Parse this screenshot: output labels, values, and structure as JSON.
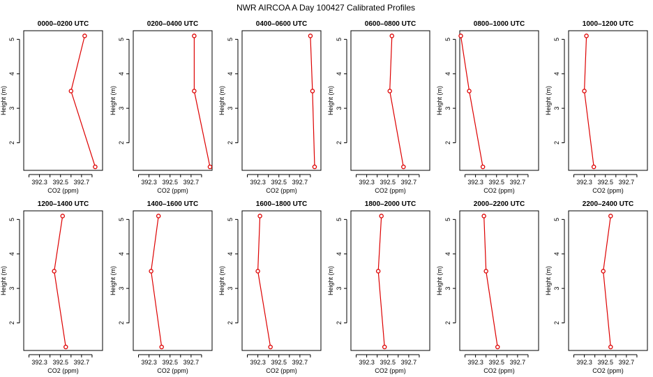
{
  "figure": {
    "title": "NWR AIRCOA A  Day 100427  Calibrated Profiles"
  },
  "colors": {
    "series": "#dd0000",
    "axis": "#000000",
    "background": "#ffffff"
  },
  "chart_data": [
    {
      "type": "line",
      "title": "0000–0200 UTC",
      "xlabel": "CO2 (ppm)",
      "ylabel": "Height (m)",
      "xlim": [
        392.15,
        392.9
      ],
      "ylim": [
        1.2,
        5.25
      ],
      "xticks": [
        "392.3",
        "392.5",
        "392.7"
      ],
      "yticks": [
        "2",
        "3",
        "4",
        "5"
      ],
      "grid": false,
      "x": [
        392.83,
        392.6,
        392.73
      ],
      "y": [
        1.3,
        3.5,
        5.1
      ]
    },
    {
      "type": "line",
      "title": "0200–0400 UTC",
      "xlabel": "CO2 (ppm)",
      "ylabel": "Height (m)",
      "xlim": [
        392.15,
        392.9
      ],
      "ylim": [
        1.2,
        5.25
      ],
      "xticks": [
        "392.3",
        "392.5",
        "392.7"
      ],
      "yticks": [
        "2",
        "3",
        "4",
        "5"
      ],
      "grid": false,
      "x": [
        392.88,
        392.73,
        392.73
      ],
      "y": [
        1.3,
        3.5,
        5.1
      ]
    },
    {
      "type": "line",
      "title": "0400–0600 UTC",
      "xlabel": "CO2 (ppm)",
      "ylabel": "Height (m)",
      "xlim": [
        392.15,
        392.9
      ],
      "ylim": [
        1.2,
        5.25
      ],
      "xticks": [
        "392.3",
        "392.5",
        "392.7"
      ],
      "yticks": [
        "2",
        "3",
        "4",
        "5"
      ],
      "grid": false,
      "x": [
        392.84,
        392.82,
        392.8
      ],
      "y": [
        1.3,
        3.5,
        5.1
      ]
    },
    {
      "type": "line",
      "title": "0600–0800 UTC",
      "xlabel": "CO2 (ppm)",
      "ylabel": "Height (m)",
      "xlim": [
        392.15,
        392.9
      ],
      "ylim": [
        1.2,
        5.25
      ],
      "xticks": [
        "392.3",
        "392.5",
        "392.7"
      ],
      "yticks": [
        "2",
        "3",
        "4",
        "5"
      ],
      "grid": false,
      "x": [
        392.65,
        392.52,
        392.54
      ],
      "y": [
        1.3,
        3.5,
        5.1
      ]
    },
    {
      "type": "line",
      "title": "0800–1000 UTC",
      "xlabel": "CO2 (ppm)",
      "ylabel": "Height (m)",
      "xlim": [
        392.15,
        392.9
      ],
      "ylim": [
        1.2,
        5.25
      ],
      "xticks": [
        "392.3",
        "392.5",
        "392.7"
      ],
      "yticks": [
        "2",
        "3",
        "4",
        "5"
      ],
      "grid": false,
      "x": [
        392.37,
        392.24,
        392.16
      ],
      "y": [
        1.3,
        3.5,
        5.1
      ]
    },
    {
      "type": "line",
      "title": "1000–1200 UTC",
      "xlabel": "CO2 (ppm)",
      "ylabel": "Height (m)",
      "xlim": [
        392.15,
        392.9
      ],
      "ylim": [
        1.2,
        5.25
      ],
      "xticks": [
        "392.3",
        "392.5",
        "392.7"
      ],
      "yticks": [
        "2",
        "3",
        "4",
        "5"
      ],
      "grid": false,
      "x": [
        392.39,
        392.3,
        392.32
      ],
      "y": [
        1.3,
        3.5,
        5.1
      ]
    },
    {
      "type": "line",
      "title": "1200–1400 UTC",
      "xlabel": "CO2 (ppm)",
      "ylabel": "Height (m)",
      "xlim": [
        392.15,
        392.9
      ],
      "ylim": [
        1.2,
        5.25
      ],
      "xticks": [
        "392.3",
        "392.5",
        "392.7"
      ],
      "yticks": [
        "2",
        "3",
        "4",
        "5"
      ],
      "grid": false,
      "x": [
        392.55,
        392.44,
        392.52
      ],
      "y": [
        1.3,
        3.5,
        5.1
      ]
    },
    {
      "type": "line",
      "title": "1400–1600 UTC",
      "xlabel": "CO2 (ppm)",
      "ylabel": "Height (m)",
      "xlim": [
        392.15,
        392.9
      ],
      "ylim": [
        1.2,
        5.25
      ],
      "xticks": [
        "392.3",
        "392.5",
        "392.7"
      ],
      "yticks": [
        "2",
        "3",
        "4",
        "5"
      ],
      "grid": false,
      "x": [
        392.42,
        392.32,
        392.39
      ],
      "y": [
        1.3,
        3.5,
        5.1
      ]
    },
    {
      "type": "line",
      "title": "1600–1800 UTC",
      "xlabel": "CO2 (ppm)",
      "ylabel": "Height (m)",
      "xlim": [
        392.15,
        392.9
      ],
      "ylim": [
        1.2,
        5.25
      ],
      "xticks": [
        "392.3",
        "392.5",
        "392.7"
      ],
      "yticks": [
        "2",
        "3",
        "4",
        "5"
      ],
      "grid": false,
      "x": [
        392.42,
        392.3,
        392.32
      ],
      "y": [
        1.3,
        3.5,
        5.1
      ]
    },
    {
      "type": "line",
      "title": "1800–2000 UTC",
      "xlabel": "CO2 (ppm)",
      "ylabel": "Height (m)",
      "xlim": [
        392.15,
        392.9
      ],
      "ylim": [
        1.2,
        5.25
      ],
      "xticks": [
        "392.3",
        "392.5",
        "392.7"
      ],
      "yticks": [
        "2",
        "3",
        "4",
        "5"
      ],
      "grid": false,
      "x": [
        392.47,
        392.41,
        392.44
      ],
      "y": [
        1.3,
        3.5,
        5.1
      ]
    },
    {
      "type": "line",
      "title": "2000–2200 UTC",
      "xlabel": "CO2 (ppm)",
      "ylabel": "Height (m)",
      "xlim": [
        392.15,
        392.9
      ],
      "ylim": [
        1.2,
        5.25
      ],
      "xticks": [
        "392.3",
        "392.5",
        "392.7"
      ],
      "yticks": [
        "2",
        "3",
        "4",
        "5"
      ],
      "grid": false,
      "x": [
        392.51,
        392.4,
        392.38
      ],
      "y": [
        1.3,
        3.5,
        5.1
      ]
    },
    {
      "type": "line",
      "title": "2200–2400 UTC",
      "xlabel": "CO2 (ppm)",
      "ylabel": "Height (m)",
      "xlim": [
        392.15,
        392.9
      ],
      "ylim": [
        1.2,
        5.25
      ],
      "xticks": [
        "392.3",
        "392.5",
        "392.7"
      ],
      "yticks": [
        "2",
        "3",
        "4",
        "5"
      ],
      "grid": false,
      "x": [
        392.55,
        392.48,
        392.55
      ],
      "y": [
        1.3,
        3.5,
        5.1
      ]
    }
  ]
}
